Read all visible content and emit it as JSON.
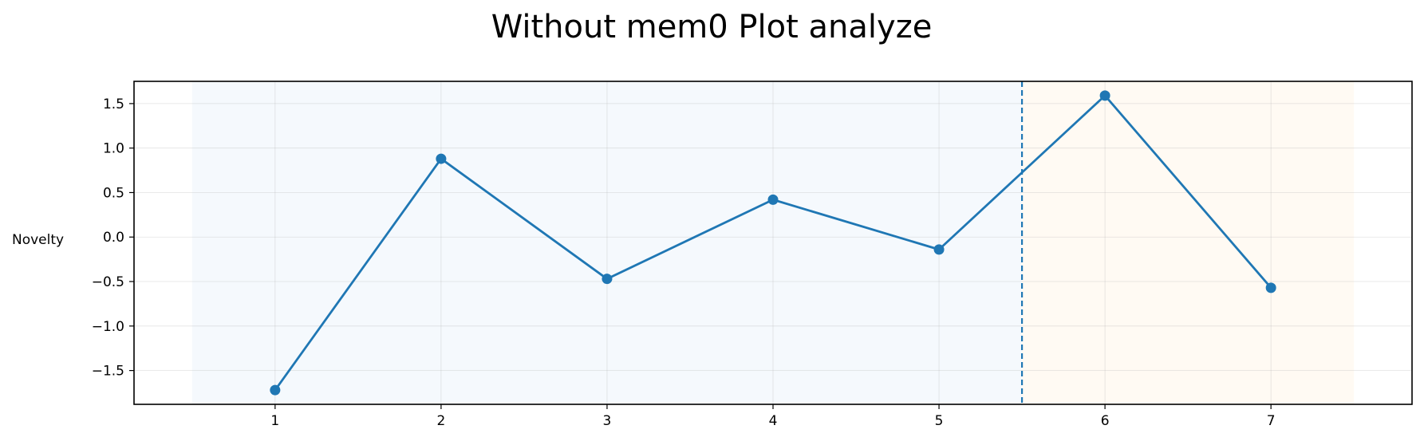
{
  "chart_data": {
    "type": "line",
    "title": "Without mem0 Plot analyze",
    "xlabel": "",
    "ylabel": "Novelty",
    "x": [
      1,
      2,
      3,
      4,
      5,
      6,
      7
    ],
    "xticks": [
      "1",
      "2",
      "3",
      "4",
      "5",
      "6",
      "7"
    ],
    "xlim": [
      0.15,
      7.85
    ],
    "ylim": [
      -1.88,
      1.75
    ],
    "yticks": [
      -1.5,
      -1.0,
      -0.5,
      0.0,
      0.5,
      1.0,
      1.5
    ],
    "ytick_labels": [
      "−1.5",
      "−1.0",
      "−0.5",
      "0.0",
      "0.5",
      "1.0",
      "1.5"
    ],
    "grid": true,
    "series": [
      {
        "values": [
          -1.72,
          0.88,
          -0.47,
          0.42,
          -0.14,
          1.59,
          -0.57
        ]
      }
    ],
    "shaded_regions": [
      {
        "x_range": [
          0.5,
          5.5
        ],
        "color": "#f5f9fd"
      },
      {
        "x_range": [
          5.5,
          7.5
        ],
        "color": "#fffaf3"
      }
    ],
    "vertical_line": {
      "x": 5.5,
      "style": "dashed"
    },
    "colors": {
      "series": "#1f77b4",
      "vline": "#1f77b4"
    }
  }
}
